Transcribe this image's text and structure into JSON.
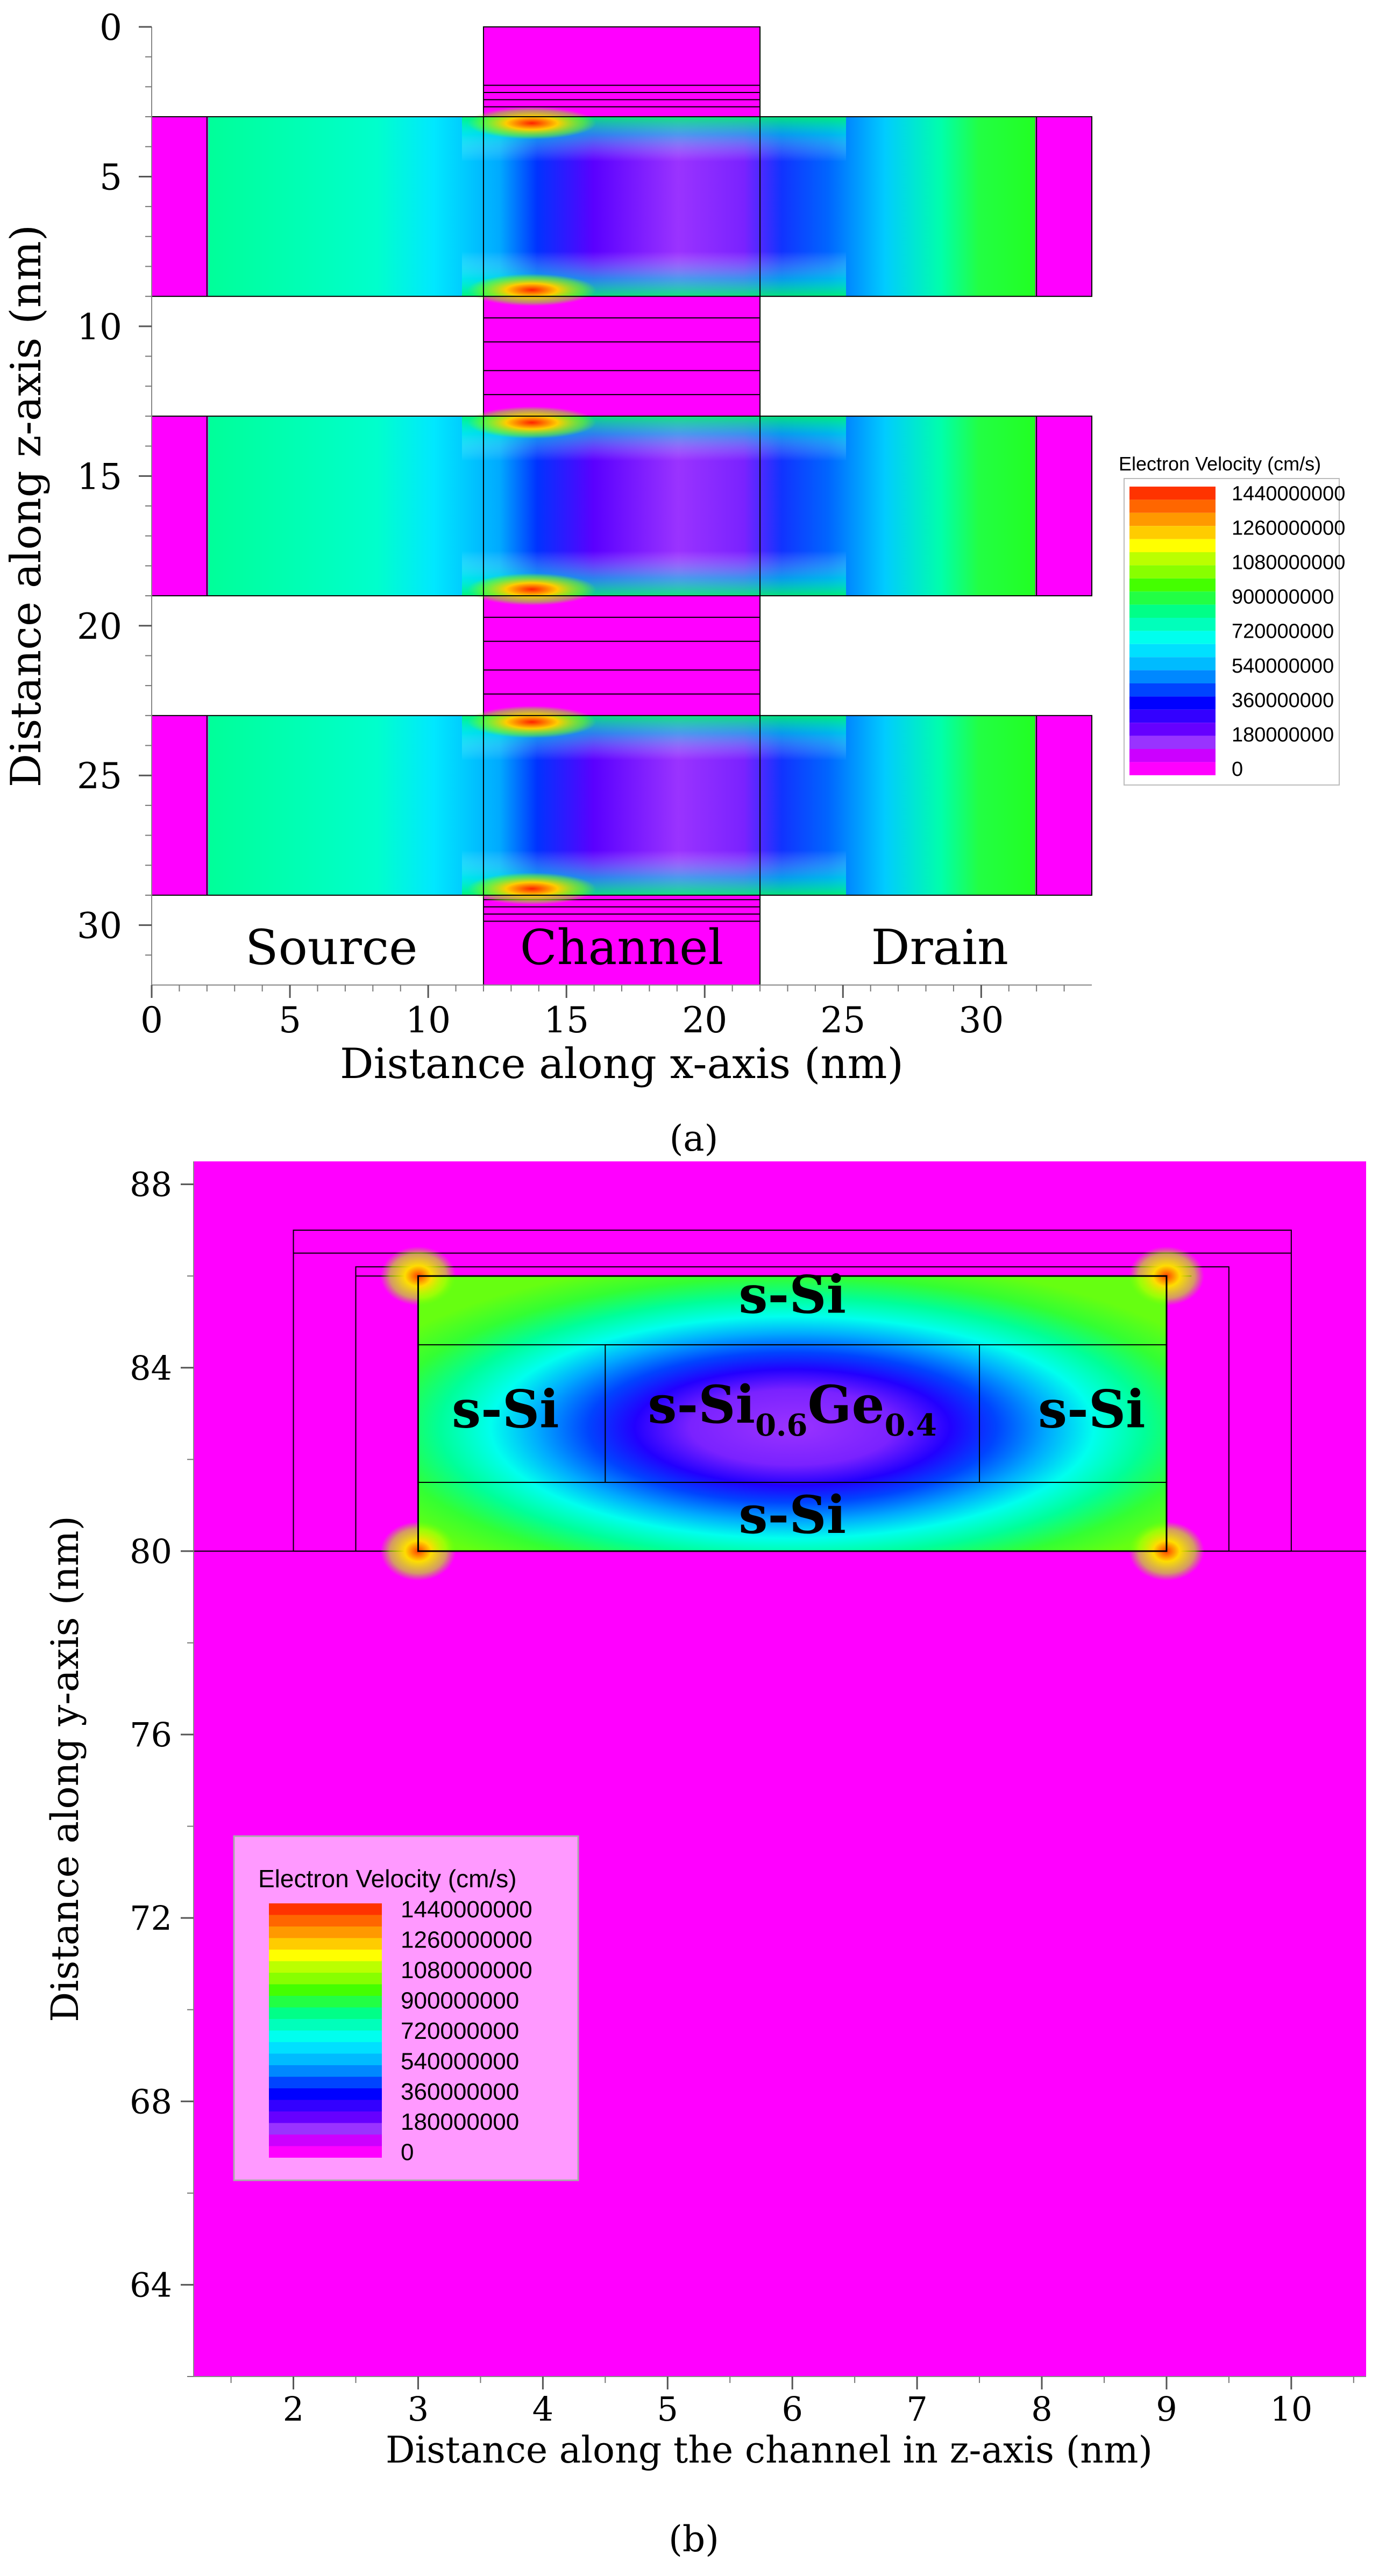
{
  "colors": {
    "background": "#ffffff",
    "magenta": "#ff00ff",
    "legend_box_fill": "#ff99ff",
    "outline": "#000000"
  },
  "colormap": {
    "stops": [
      "#ff00ff",
      "#cc00ff",
      "#9933ff",
      "#6600ff",
      "#3300ff",
      "#0000ff",
      "#0044ff",
      "#0088ff",
      "#00bbff",
      "#00e0ff",
      "#00ffee",
      "#00ffbb",
      "#00ff88",
      "#22ff44",
      "#44ff00",
      "#88ff00",
      "#bbff00",
      "#ffff00",
      "#ffcc00",
      "#ff9900",
      "#ff6600",
      "#ff3300"
    ]
  },
  "chart_data": [
    {
      "type": "heatmap",
      "panel_label": "(a)",
      "title": "",
      "xlabel": "Distance along x-axis (nm)",
      "ylabel": "Distance along z-axis (nm)",
      "xlim": [
        0,
        34
      ],
      "ylim": [
        32,
        0
      ],
      "x_ticks": [
        "0",
        "5",
        "10",
        "15",
        "20",
        "25",
        "30"
      ],
      "y_ticks": [
        "0",
        "5",
        "10",
        "15",
        "20",
        "25",
        "30"
      ],
      "region_labels": [
        "Source",
        "Channel",
        "Drain"
      ],
      "legend_title": "Electron Velocity (cm/s)",
      "legend_labels": [
        "1440000000",
        "1260000000",
        "1080000000",
        "900000000",
        "720000000",
        "540000000",
        "360000000",
        "180000000",
        "0"
      ],
      "value_unit": "cm/s",
      "value_range": [
        0,
        1440000000
      ],
      "nanowire_layers_z_nm": [
        [
          3,
          9
        ],
        [
          13,
          19
        ],
        [
          23,
          29
        ]
      ],
      "gate_x_nm": [
        12,
        22
      ],
      "contact_x_nm": [
        [
          0,
          2
        ],
        [
          32,
          34
        ]
      ]
    },
    {
      "type": "heatmap",
      "panel_label": "(b)",
      "title": "",
      "xlabel": "Distance along the channel in z-axis (nm)",
      "ylabel": "Distance along y-axis (nm)",
      "xlim": [
        1.2,
        10.6
      ],
      "ylim": [
        62,
        88.5
      ],
      "x_ticks": [
        "2",
        "3",
        "4",
        "5",
        "6",
        "7",
        "8",
        "9",
        "10"
      ],
      "y_ticks": [
        "64",
        "68",
        "72",
        "76",
        "80",
        "84",
        "88"
      ],
      "region_labels": [
        "s-Si",
        "s-Si",
        "s-Si",
        "s-Si"
      ],
      "core_label": {
        "base1": "s-Si",
        "sub1": "0.6",
        "base2": "Ge",
        "sub2": "0.4"
      },
      "legend_title": "Electron Velocity (cm/s)",
      "legend_labels": [
        "1440000000",
        "1260000000",
        "1080000000",
        "900000000",
        "720000000",
        "540000000",
        "360000000",
        "180000000",
        "0"
      ],
      "value_unit": "cm/s",
      "value_range": [
        0,
        1440000000
      ],
      "channel_z_nm": [
        3,
        9
      ],
      "channel_y_nm": [
        80,
        86
      ],
      "core_z_nm": [
        4.5,
        7.5
      ],
      "core_y_nm": [
        81.5,
        84.5
      ]
    }
  ]
}
